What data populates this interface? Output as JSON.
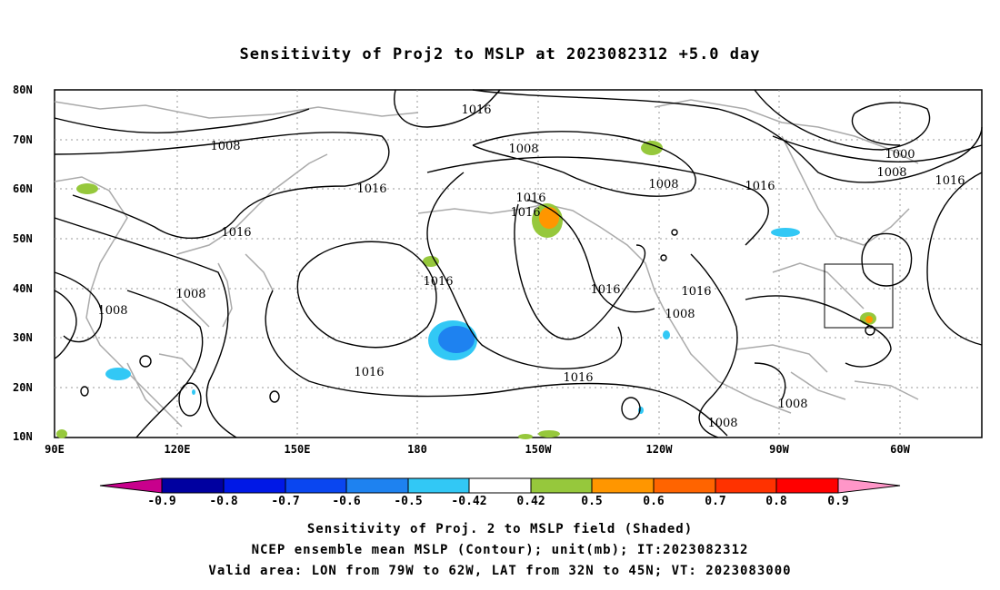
{
  "title": "Sensitivity of Proj2 to MSLP at 2023082312 +5.0 day",
  "lat_labels": [
    "80N",
    "70N",
    "60N",
    "50N",
    "40N",
    "30N",
    "20N",
    "10N"
  ],
  "lon_labels": [
    "90E",
    "120E",
    "150E",
    "180",
    "150W",
    "120W",
    "90W",
    "60W"
  ],
  "contour_labels": [
    "1016",
    "1008",
    "1008",
    "1000",
    "1008",
    "1016",
    "1008",
    "1016",
    "1016",
    "1016",
    "1016",
    "1016",
    "1016",
    "1008",
    "1008",
    "1016",
    "1016",
    "1016",
    "1016",
    "1008",
    "1008",
    "1008"
  ],
  "colorbar": {
    "labels": [
      "-0.9",
      "-0.8",
      "-0.7",
      "-0.6",
      "-0.5",
      "-0.42",
      "0.42",
      "0.5",
      "0.6",
      "0.7",
      "0.8",
      "0.9"
    ],
    "colors": [
      "#c8008c",
      "#0000a0",
      "#0018e6",
      "#0a46f0",
      "#1e82f0",
      "#32c8f5",
      "#ffffff",
      "#96c83c",
      "#ff9600",
      "#ff6400",
      "#ff3200",
      "#ff0000",
      "#ff96c8"
    ]
  },
  "valid_box": {
    "lon_from": "79W",
    "lon_to": "62W",
    "lat_from": "32N",
    "lat_to": "45N"
  },
  "captions": [
    "Sensitivity of Proj. 2 to MSLP field (Shaded)",
    "NCEP ensemble mean MSLP (Contour); unit(mb); IT:2023082312",
    "Valid area: LON from 79W to 62W, LAT from 32N to 45N; VT: 2023083000"
  ]
}
